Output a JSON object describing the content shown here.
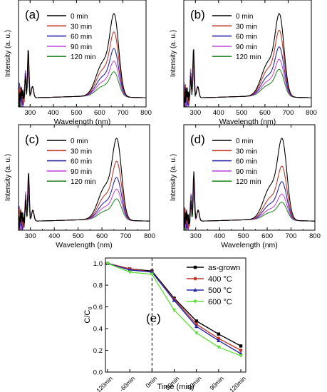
{
  "colors": {
    "0 min": "#000000",
    "30 min": "#c0392b",
    "60 min": "#2828a8",
    "90 min": "#c050d8",
    "120 min": "#2f8a2f",
    "as-grown": "#000000",
    "400C": "#c0392b",
    "500C": "#2828a8",
    "600C": "#66dd44"
  },
  "chart_data": [
    {
      "type": "line",
      "panel_label": "(a)",
      "xlabel": "Wavelength (nm)",
      "ylabel": "Intensity (a. u.)",
      "xlim": [
        250,
        800
      ],
      "xticks": [
        "300",
        "400",
        "500",
        "600",
        "700",
        "800"
      ],
      "legend": [
        "0 min",
        "30 min",
        "60 min",
        "90 min",
        "120 min"
      ],
      "peak_heights": [
        1.0,
        0.78,
        0.58,
        0.43,
        0.3
      ]
    },
    {
      "type": "line",
      "panel_label": "(b)",
      "xlabel": "Wavelength (nm)",
      "ylabel": "Intensity (a. u.)",
      "xlim": [
        250,
        800
      ],
      "xticks": [
        "300",
        "400",
        "500",
        "600",
        "700",
        "800"
      ],
      "legend": [
        "0 min",
        "30 min",
        "60 min",
        "90 min",
        "120 min"
      ],
      "peak_heights": [
        1.0,
        0.8,
        0.6,
        0.45,
        0.33
      ]
    },
    {
      "type": "line",
      "panel_label": "(c)",
      "xlabel": "Wavelength (nm)",
      "ylabel": "Intensity (a. u.)",
      "xlim": [
        250,
        800
      ],
      "xticks": [
        "300",
        "400",
        "500",
        "600",
        "700",
        "800"
      ],
      "legend": [
        "0 min",
        "30 min",
        "60 min",
        "90 min",
        "120 min"
      ],
      "peak_heights": [
        1.0,
        0.72,
        0.52,
        0.38,
        0.26
      ]
    },
    {
      "type": "line",
      "panel_label": "(d)",
      "xlabel": "Wavelength (nm)",
      "ylabel": "Intensity (a. u.)",
      "xlim": [
        250,
        800
      ],
      "xticks": [
        "300",
        "400",
        "500",
        "600",
        "700",
        "800"
      ],
      "legend": [
        "0 min",
        "30 min",
        "60 min",
        "90 min",
        "120 min"
      ],
      "peak_heights": [
        1.0,
        0.66,
        0.47,
        0.32,
        0.22
      ]
    },
    {
      "type": "line",
      "panel_label": "(e)",
      "xlabel": "Time (min)",
      "ylabel": "C/C",
      "ylabel_sub": "0",
      "x": [
        "-120min",
        "-60min",
        "0min",
        "30min",
        "60min",
        "90min",
        "120min"
      ],
      "ylim": [
        0.0,
        1.05
      ],
      "yticks": [
        "0.0",
        "0.2",
        "0.4",
        "0.6",
        "0.8",
        "1.0"
      ],
      "series": [
        {
          "name": "as-grown",
          "values": [
            1.0,
            0.95,
            0.93,
            0.68,
            0.47,
            0.35,
            0.24
          ]
        },
        {
          "name": "400 °C",
          "values": [
            1.0,
            0.95,
            0.92,
            0.67,
            0.44,
            0.31,
            0.2
          ]
        },
        {
          "name": "500 °C",
          "values": [
            1.0,
            0.94,
            0.92,
            0.66,
            0.42,
            0.29,
            0.17
          ]
        },
        {
          "name": "600 °C",
          "values": [
            1.0,
            0.92,
            0.9,
            0.57,
            0.36,
            0.23,
            0.15
          ]
        }
      ]
    }
  ]
}
